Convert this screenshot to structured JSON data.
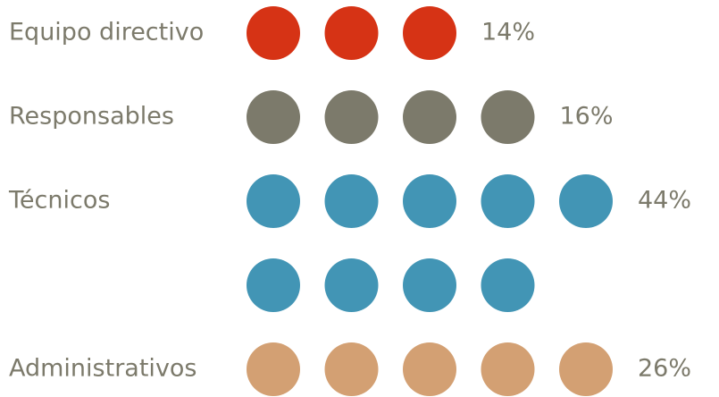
{
  "chart_data": {
    "type": "pictogram",
    "categories": [
      "Equipo directivo",
      "Responsables",
      "Técnicos",
      "Administrativos"
    ],
    "values": [
      14,
      16,
      44,
      26
    ],
    "value_labels": [
      "14%",
      "16%",
      "44%",
      "26%"
    ],
    "counts": [
      3,
      4,
      9,
      5
    ],
    "colors": [
      "#d63315",
      "#7c7a6b",
      "#4295b5",
      "#d3a073"
    ],
    "text_color": "#7c7a6b"
  }
}
